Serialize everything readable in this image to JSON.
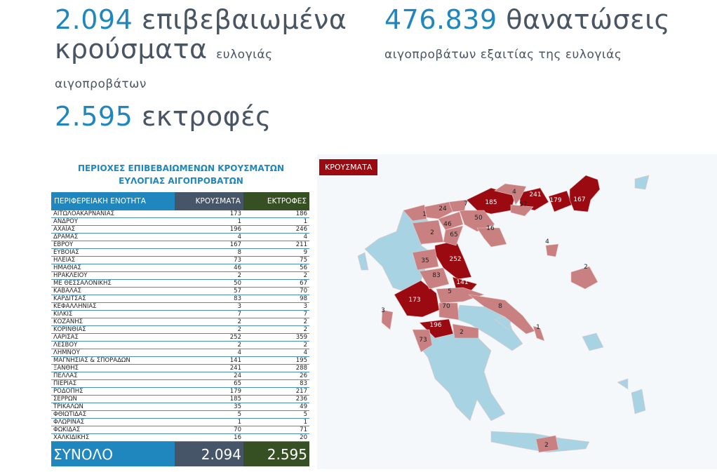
{
  "stats": {
    "cases": {
      "number": "2.094",
      "text": "επιβεβαιωμένα κρούσματα",
      "suffix": "ευλογιάς αιγοπροβάτων"
    },
    "deaths": {
      "number": "476.839",
      "text": "θανατώσεις",
      "suffix": "αιγοπροβάτων εξαιτίας της ευλογιάς"
    },
    "farms": {
      "number": "2.595",
      "text": "εκτροφές"
    }
  },
  "table": {
    "title_line1": "ΠΕΡΙΟΧΕΣ ΕΠΙΒΕΒΑΙΩΜΕΝΩΝ ΚΡΟΥΣΜΑΤΩΝ",
    "title_line2": "ΕΥΛΟΓΙΑΣ ΑΙΓΟΠΡΟΒΑΤΩΝ",
    "headers": [
      "ΠΕΡΙΦΕΡΕΙΑΚΗ ΕΝΟΤΗΤΑ",
      "ΚΡΟΥΣΜΑΤΑ",
      "ΕΚΤΡΟΦΕΣ"
    ],
    "rows": [
      [
        "ΑΙΤΩΛΟΑΚΑΡΝΑΝΙΑΣ",
        "173",
        "186"
      ],
      [
        "ΑΝΔΡΟΥ",
        "1",
        "1"
      ],
      [
        "ΑΧΑΪΑΣ",
        "196",
        "246"
      ],
      [
        "ΔΡΑΜΑΣ",
        "4",
        "4"
      ],
      [
        "ΕΒΡΟΥ",
        "167",
        "211"
      ],
      [
        "ΕΥΒΟΙΑΣ",
        "8",
        "9"
      ],
      [
        "ΗΛΕΙΑΣ",
        "73",
        "75"
      ],
      [
        "ΗΜΑΘΙΑΣ",
        "46",
        "56"
      ],
      [
        "ΗΡΑΚΛΕΙΟΥ",
        "2",
        "2"
      ],
      [
        "ΜΕ ΘΕΣΣΑΛΟΝΙΚΗΣ",
        "50",
        "67"
      ],
      [
        "ΚΑΒΑΛΑΣ",
        "57",
        "70"
      ],
      [
        "ΚΑΡΔΙΤΣΑΣ",
        "83",
        "98"
      ],
      [
        "ΚΕΦΑΛΛΗΝΙΑΣ",
        "3",
        "3"
      ],
      [
        "ΚΙΛΚΙΣ",
        "7",
        "7"
      ],
      [
        "ΚΟΖΑΝΗΣ",
        "2",
        "2"
      ],
      [
        "ΚΟΡΙΝΘΙΑΣ",
        "2",
        "2"
      ],
      [
        "ΛΑΡΙΣΑΣ",
        "252",
        "359"
      ],
      [
        "ΛΕΣΒΟΥ",
        "2",
        "2"
      ],
      [
        "ΛΗΜΝΟΥ",
        "4",
        "4"
      ],
      [
        "ΜΑΓΝΗΣΙΑΣ & ΣΠΟΡΑΔΩΝ",
        "141",
        "195"
      ],
      [
        "ΞΑΝΘΗΣ",
        "241",
        "288"
      ],
      [
        "ΠΕΛΛΑΣ",
        "24",
        "26"
      ],
      [
        "ΠΙΕΡΙΑΣ",
        "65",
        "83"
      ],
      [
        "ΡΟΔΟΠΗΣ",
        "179",
        "217"
      ],
      [
        "ΣΕΡΡΩΝ",
        "185",
        "236"
      ],
      [
        "ΤΡΙΚΑΛΩΝ",
        "35",
        "49"
      ],
      [
        "ΦΘΙΩΤΙΔΑΣ",
        "5",
        "5"
      ],
      [
        "ΦΛΩΡΙΝΑΣ",
        "1",
        "1"
      ],
      [
        "ΦΩΚΙΔΑΣ",
        "70",
        "71"
      ],
      [
        "ΧΑΛΚΙΔΙΚΗΣ",
        "16",
        "20"
      ]
    ],
    "total": [
      "ΣΥΝΟΛΟ",
      "2.094",
      "2.595"
    ]
  },
  "map": {
    "legend": "ΚΡΟΥΣΜΑΤΑ",
    "colors": {
      "high": "#9b0a10",
      "low": "#c98080",
      "none": "#a8d3e3",
      "background": "#f4f8fb"
    },
    "regions": [
      {
        "name": "ΣΕΡΡΩΝ",
        "value": "185",
        "level": "high"
      },
      {
        "name": "ΞΑΝΘΗΣ",
        "value": "241",
        "level": "high"
      },
      {
        "name": "ΡΟΔΟΠΗΣ",
        "value": "179",
        "level": "high"
      },
      {
        "name": "ΕΒΡΟΥ",
        "value": "167",
        "level": "high"
      },
      {
        "name": "ΛΑΡΙΣΑΣ",
        "value": "252",
        "level": "high"
      },
      {
        "name": "ΜΑΓΝΗΣΙΑΣ",
        "value": "141",
        "level": "high"
      },
      {
        "name": "ΑΙΤΩΛΟΑΚΑΡΝΑΝΙΑΣ",
        "value": "173",
        "level": "high"
      },
      {
        "name": "ΑΧΑΪΑΣ",
        "value": "196",
        "level": "high"
      },
      {
        "name": "ΔΡΑΜΑΣ",
        "value": "4",
        "level": "low"
      },
      {
        "name": "ΚΑΒΑΛΑΣ",
        "value": "57",
        "level": "low"
      },
      {
        "name": "ΘΕΣΣΑΛΟΝΙΚΗΣ",
        "value": "50",
        "level": "low"
      },
      {
        "name": "ΧΑΛΚΙΔΙΚΗΣ",
        "value": "16",
        "level": "low"
      },
      {
        "name": "ΚΙΛΚΙΣ",
        "value": "7",
        "level": "low"
      },
      {
        "name": "ΠΕΛΛΑΣ",
        "value": "24",
        "level": "low"
      },
      {
        "name": "ΗΜΑΘΙΑΣ",
        "value": "46",
        "level": "low"
      },
      {
        "name": "ΦΛΩΡΙΝΑΣ",
        "value": "1",
        "level": "low"
      },
      {
        "name": "ΚΟΖΑΝΗΣ",
        "value": "2",
        "level": "low"
      },
      {
        "name": "ΠΙΕΡΙΑΣ",
        "value": "65",
        "level": "low"
      },
      {
        "name": "ΤΡΙΚΑΛΩΝ",
        "value": "35",
        "level": "low"
      },
      {
        "name": "ΚΑΡΔΙΤΣΑΣ",
        "value": "83",
        "level": "low"
      },
      {
        "name": "ΦΘΙΩΤΙΔΑΣ",
        "value": "5",
        "level": "low"
      },
      {
        "name": "ΦΩΚΙΔΑΣ",
        "value": "70",
        "level": "low"
      },
      {
        "name": "ΕΥΒΟΙΑΣ",
        "value": "8",
        "level": "low"
      },
      {
        "name": "ΗΛΕΙΑΣ",
        "value": "73",
        "level": "low"
      },
      {
        "name": "ΚΟΡΙΝΘΙΑΣ",
        "value": "2",
        "level": "low"
      },
      {
        "name": "ΚΕΦΑΛΛΗΝΙΑΣ",
        "value": "3",
        "level": "low"
      },
      {
        "name": "ΛΗΜΝΟΥ",
        "value": "4",
        "level": "low"
      },
      {
        "name": "ΛΕΣΒΟΥ",
        "value": "2",
        "level": "low"
      },
      {
        "name": "ΑΝΔΡΟΥ",
        "value": "1",
        "level": "low"
      },
      {
        "name": "ΗΡΑΚΛΕΙΟΥ",
        "value": "2",
        "level": "low"
      }
    ]
  }
}
